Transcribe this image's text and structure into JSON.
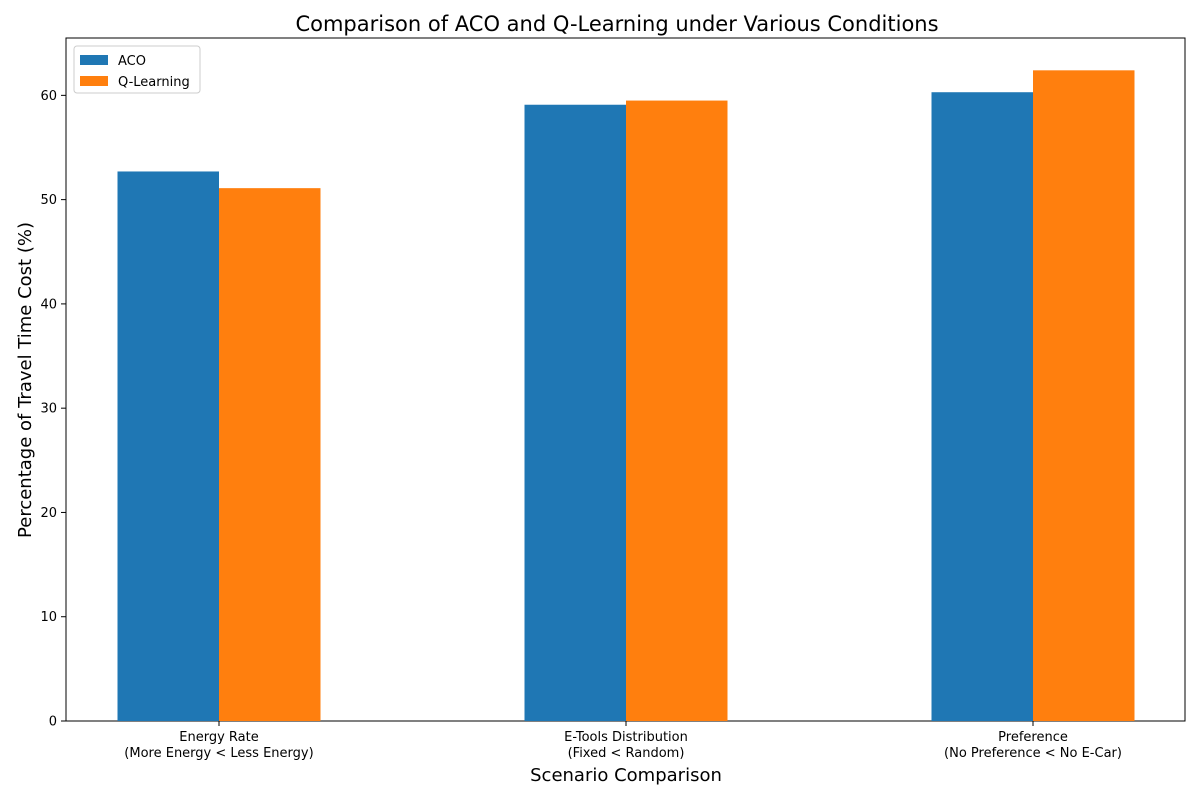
{
  "chart_data": {
    "type": "bar",
    "title": "Comparison of ACO and Q-Learning under Various Conditions",
    "xlabel": "Scenario Comparison",
    "ylabel": "Percentage of Travel Time Cost (%)",
    "categories": [
      [
        "Energy Rate",
        "(More Energy < Less Energy)"
      ],
      [
        "E-Tools Distribution",
        "(Fixed < Random)"
      ],
      [
        "Preference",
        "(No Preference < No E-Car)"
      ]
    ],
    "series": [
      {
        "name": "ACO",
        "color": "#1f77b4",
        "values": [
          52.7,
          59.1,
          60.3
        ]
      },
      {
        "name": "Q-Learning",
        "color": "#ff7f0e",
        "values": [
          51.1,
          59.5,
          62.4
        ]
      }
    ],
    "ylim": [
      0,
      65.5
    ],
    "yticks": [
      0,
      10,
      20,
      30,
      40,
      50,
      60
    ],
    "legend": "top-left",
    "grid": false
  }
}
